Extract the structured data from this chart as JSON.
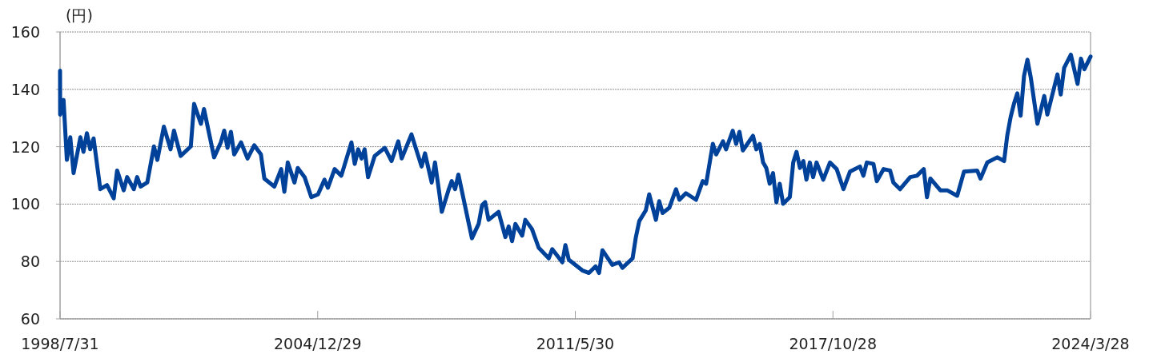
{
  "chart_data": {
    "type": "line",
    "ylabel": "(円)",
    "color": "#00419a",
    "grid": "y",
    "xlim": [
      "1998-07-31",
      "2024-03-28"
    ],
    "xticks": [
      {
        "value": "1998-07-31",
        "label": "1998/7/31"
      },
      {
        "value": "2004-12-29",
        "label": "2004/12/29"
      },
      {
        "value": "2011-05-30",
        "label": "2011/5/30"
      },
      {
        "value": "2017-10-28",
        "label": "2017/10/28"
      },
      {
        "value": "2024-03-28",
        "label": "2024/3/28"
      }
    ],
    "ylim": [
      60,
      160
    ],
    "yticks": [
      60,
      80,
      100,
      120,
      140,
      160
    ],
    "x": [
      "1998-07-31",
      "1998-08",
      "1998-09",
      "1998-10",
      "1998-11",
      "1998-12",
      "1999-02",
      "1999-03",
      "1999-04",
      "1999-05",
      "1999-06",
      "1999-08",
      "1999-10",
      "1999-12",
      "2000-01",
      "2000-03",
      "2000-04",
      "2000-06",
      "2000-07",
      "2000-08",
      "2000-10",
      "2000-12",
      "2001-01",
      "2001-03",
      "2001-05",
      "2001-06",
      "2001-08",
      "2001-11",
      "2001-12",
      "2002-02",
      "2002-03",
      "2002-06",
      "2002-08",
      "2002-09",
      "2002-10",
      "2002-11",
      "2002-12",
      "2003-02",
      "2003-04",
      "2003-06",
      "2003-08",
      "2003-09",
      "2003-12",
      "2004-02",
      "2004-03",
      "2004-04",
      "2004-06",
      "2004-07",
      "2004-09",
      "2004-11",
      "2005-01",
      "2005-03",
      "2005-04",
      "2005-06",
      "2005-08",
      "2005-11",
      "2005-12",
      "2006-01",
      "2006-02",
      "2006-03",
      "2006-04",
      "2006-06",
      "2006-09",
      "2006-11",
      "2007-01",
      "2007-02",
      "2007-05",
      "2007-08",
      "2007-09",
      "2007-11",
      "2007-12",
      "2008-01",
      "2008-02",
      "2008-04",
      "2008-05",
      "2008-06",
      "2008-07",
      "2008-10",
      "2008-11",
      "2009-01",
      "2009-02",
      "2009-03",
      "2009-04",
      "2009-07",
      "2009-09",
      "2009-10",
      "2009-11",
      "2009-12",
      "2010-02",
      "2010-03",
      "2010-05",
      "2010-07",
      "2010-10",
      "2010-11",
      "2011-02",
      "2011-03",
      "2011-04",
      "2011-08",
      "2011-10",
      "2011-12",
      "2012-01",
      "2012-02",
      "2012-05",
      "2012-07",
      "2012-08",
      "2012-11",
      "2012-12",
      "2013-01",
      "2013-03",
      "2013-04",
      "2013-06",
      "2013-07",
      "2013-08",
      "2013-10",
      "2013-12",
      "2014-01",
      "2014-03",
      "2014-06",
      "2014-08",
      "2014-09",
      "2014-11",
      "2014-12",
      "2015-02",
      "2015-03",
      "2015-05",
      "2015-06",
      "2015-07",
      "2015-08",
      "2015-11",
      "2015-12",
      "2016-01",
      "2016-02",
      "2016-03",
      "2016-04",
      "2016-05",
      "2016-06",
      "2016-07",
      "2016-08",
      "2016-10",
      "2016-11",
      "2016-12",
      "2017-01",
      "2017-02",
      "2017-03",
      "2017-04",
      "2017-05",
      "2017-06",
      "2017-08",
      "2017-10",
      "2017-12",
      "2018-02",
      "2018-04",
      "2018-07",
      "2018-08",
      "2018-09",
      "2018-11",
      "2018-12",
      "2019-02",
      "2019-04",
      "2019-05",
      "2019-07",
      "2019-10",
      "2019-12",
      "2020-02",
      "2020-03",
      "2020-04",
      "2020-07",
      "2020-09",
      "2020-12",
      "2021-02",
      "2021-06",
      "2021-07",
      "2021-09",
      "2021-12",
      "2022-02",
      "2022-03",
      "2022-04",
      "2022-05",
      "2022-06",
      "2022-07",
      "2022-08",
      "2022-09",
      "2022-10",
      "2022-12",
      "2023-02",
      "2023-03",
      "2023-05",
      "2023-06",
      "2023-07",
      "2023-08",
      "2023-10",
      "2023-12",
      "2024-01",
      "2024-02",
      "2024-03-28"
    ],
    "values": [
      146.5,
      131.2,
      136.3,
      115.4,
      123.3,
      110.8,
      123.3,
      118.2,
      124.7,
      119.1,
      122.9,
      105.2,
      106.6,
      102.0,
      111.7,
      104.8,
      109.4,
      105.2,
      109.4,
      106.1,
      107.5,
      120.1,
      115.4,
      127.0,
      119.1,
      125.6,
      116.8,
      120.1,
      134.9,
      128.0,
      133.1,
      116.3,
      121.5,
      125.6,
      119.6,
      125.2,
      117.3,
      121.5,
      115.9,
      120.5,
      117.3,
      108.9,
      106.1,
      112.2,
      104.3,
      114.5,
      107.5,
      112.6,
      109.4,
      102.4,
      103.4,
      108.5,
      105.7,
      112.2,
      109.9,
      121.5,
      114.0,
      119.1,
      115.9,
      119.1,
      109.4,
      116.8,
      119.6,
      115.0,
      121.9,
      115.9,
      124.3,
      113.1,
      117.7,
      107.5,
      114.5,
      106.1,
      97.3,
      104.8,
      108.0,
      105.2,
      110.3,
      93.6,
      88.1,
      93.1,
      99.6,
      100.7,
      94.5,
      97.3,
      88.5,
      92.2,
      87.1,
      93.1,
      89.0,
      94.5,
      91.3,
      84.8,
      81.1,
      84.3,
      79.7,
      85.7,
      80.6,
      76.9,
      76.0,
      78.3,
      76.0,
      83.9,
      78.8,
      79.7,
      77.8,
      81.1,
      88.5,
      94.1,
      97.8,
      103.4,
      94.5,
      101.0,
      96.9,
      98.7,
      105.2,
      101.5,
      103.8,
      101.5,
      108.0,
      107.1,
      121.0,
      117.3,
      121.9,
      119.1,
      125.6,
      121.0,
      125.2,
      118.7,
      123.8,
      119.1,
      121.0,
      114.5,
      112.6,
      107.1,
      110.8,
      100.6,
      107.1,
      100.1,
      102.4,
      114.5,
      118.2,
      112.6,
      115.0,
      108.5,
      114.5,
      109.4,
      114.5,
      108.5,
      114.5,
      112.2,
      105.2,
      111.3,
      113.1,
      109.9,
      114.5,
      114.0,
      108.0,
      112.2,
      111.7,
      107.5,
      105.2,
      109.4,
      109.9,
      112.2,
      102.4,
      108.9,
      104.8,
      104.8,
      102.9,
      111.3,
      111.7,
      108.9,
      114.5,
      116.3,
      115.0,
      123.8,
      130.3,
      134.9,
      138.6,
      130.8,
      144.7,
      150.3,
      144.2,
      128.0,
      137.7,
      131.2,
      140.5,
      145.2,
      138.2,
      147.5,
      152.1,
      141.9,
      150.7,
      147.0,
      151.4
    ]
  }
}
